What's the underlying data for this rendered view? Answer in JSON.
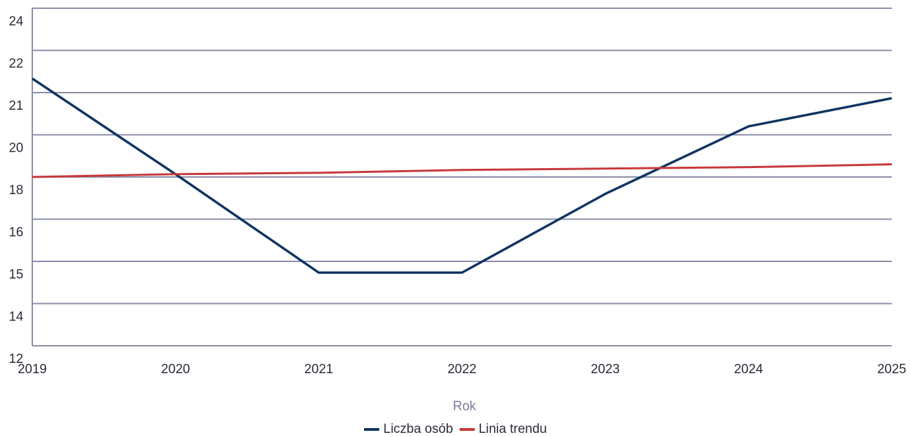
{
  "chart_data": {
    "type": "line",
    "xlabel": "Rok",
    "x": [
      "2019",
      "2020",
      "2021",
      "2022",
      "2023",
      "2024",
      "2025"
    ],
    "y_ticks": [
      "24",
      "22",
      "21",
      "20",
      "18",
      "16",
      "15",
      "14",
      "12"
    ],
    "ylim": [
      12,
      24
    ],
    "grid": true,
    "legend_position": "bottom-center",
    "series": [
      {
        "name": "Liczba osób",
        "color": "#0f3460",
        "values": [
          21.5,
          18.1,
          14.6,
          14.6,
          17.4,
          19.8,
          20.8
        ]
      },
      {
        "name": "Linia trendu",
        "color": "#c8383a",
        "values": [
          18.0,
          18.1,
          18.15,
          18.25,
          18.3,
          18.35,
          18.45
        ]
      }
    ]
  }
}
